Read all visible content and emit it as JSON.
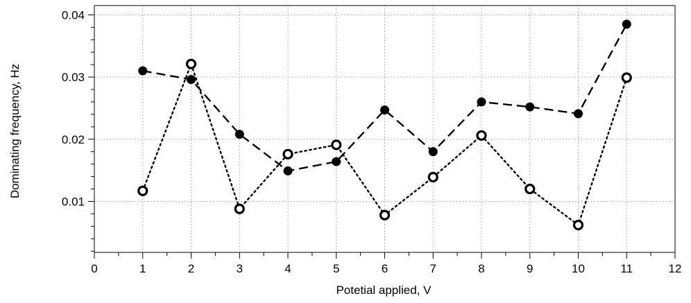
{
  "chart_data": {
    "type": "line",
    "title": "",
    "xlabel": "Potetial applied, V",
    "ylabel": "Dominating frequency, Hz",
    "xlim": [
      0,
      12
    ],
    "ylim": [
      0.0018,
      0.0415
    ],
    "x_ticks": [
      0,
      1,
      2,
      3,
      4,
      5,
      6,
      7,
      8,
      9,
      10,
      11,
      12
    ],
    "x_tick_labels": [
      "0",
      "1",
      "2",
      "3",
      "4",
      "5",
      "6",
      "7",
      "8",
      "9",
      "10",
      "11",
      "12"
    ],
    "y_ticks": [
      0.01,
      0.02,
      0.03,
      0.04
    ],
    "y_tick_labels": [
      "0.01",
      "0.02",
      "0.03",
      "0.04"
    ],
    "grid": true,
    "legend": "none",
    "series": [
      {
        "style": "dashed",
        "marker": "filled-circle",
        "color": "#000000",
        "x": [
          1,
          2,
          3,
          4,
          5,
          6,
          7,
          8,
          9,
          10,
          11
        ],
        "y": [
          0.031,
          0.0296,
          0.0208,
          0.0149,
          0.0164,
          0.0247,
          0.018,
          0.026,
          0.0252,
          0.0241,
          0.0385
        ]
      },
      {
        "style": "dotted",
        "marker": "open-circle",
        "color": "#000000",
        "x": [
          1,
          2,
          3,
          4,
          5,
          6,
          7,
          8,
          9,
          10,
          11
        ],
        "y": [
          0.0117,
          0.0321,
          0.0088,
          0.0176,
          0.0191,
          0.0078,
          0.0139,
          0.0206,
          0.012,
          0.0062,
          0.0299
        ]
      }
    ]
  }
}
